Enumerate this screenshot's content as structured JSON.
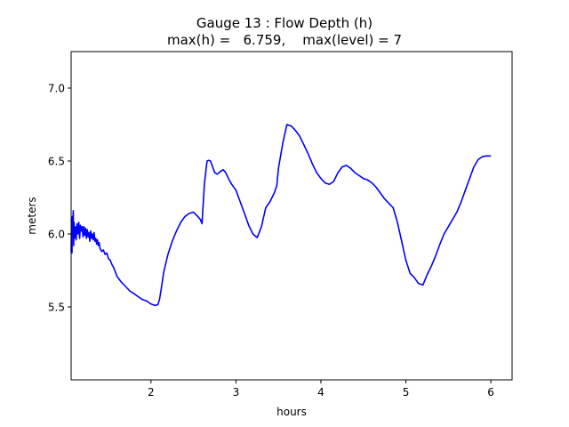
{
  "chart_data": {
    "type": "line",
    "title": "Gauge 13 : Flow Depth (h)",
    "subtitle": "max(h) =   6.759,    max(level) = 7",
    "xlabel": "hours",
    "ylabel": "meters",
    "xlim": [
      1.06,
      6.25
    ],
    "ylim": [
      5.0,
      7.25
    ],
    "xticks": [
      2,
      3,
      4,
      5,
      6
    ],
    "xtick_labels": [
      "2",
      "3",
      "4",
      "5",
      "6"
    ],
    "yticks": [
      5.5,
      6.0,
      6.5,
      7.0
    ],
    "ytick_labels": [
      "5.5",
      "6.0",
      "6.5",
      "7.0"
    ],
    "grid": false,
    "line_color": "#0000ff",
    "series": [
      {
        "x": [
          1.06,
          1.065,
          1.07,
          1.075,
          1.08,
          1.085,
          1.09,
          1.095,
          1.1,
          1.11,
          1.12,
          1.13,
          1.14,
          1.15,
          1.16,
          1.17,
          1.18,
          1.19,
          1.2,
          1.21,
          1.22,
          1.23,
          1.24,
          1.25,
          1.26,
          1.27,
          1.28,
          1.29,
          1.3,
          1.31,
          1.32,
          1.33,
          1.34,
          1.35,
          1.36,
          1.37,
          1.38,
          1.39,
          1.4,
          1.42,
          1.44,
          1.46,
          1.48,
          1.5,
          1.52,
          1.54,
          1.56,
          1.58,
          1.6,
          1.65,
          1.7,
          1.75,
          1.8,
          1.85,
          1.9,
          1.95,
          2.0,
          2.05,
          2.08,
          2.1,
          2.12,
          2.15,
          2.2,
          2.25,
          2.3,
          2.35,
          2.4,
          2.45,
          2.5,
          2.55,
          2.58,
          2.6,
          2.63,
          2.66,
          2.68,
          2.7,
          2.72,
          2.75,
          2.78,
          2.82,
          2.85,
          2.88,
          2.92,
          2.95,
          3.0,
          3.05,
          3.1,
          3.15,
          3.2,
          3.25,
          3.3,
          3.35,
          3.4,
          3.45,
          3.48,
          3.5,
          3.55,
          3.6,
          3.65,
          3.7,
          3.75,
          3.8,
          3.85,
          3.9,
          3.95,
          4.0,
          4.05,
          4.1,
          4.15,
          4.2,
          4.25,
          4.3,
          4.35,
          4.4,
          4.45,
          4.5,
          4.55,
          4.6,
          4.65,
          4.7,
          4.75,
          4.8,
          4.85,
          4.9,
          4.95,
          5.0,
          5.05,
          5.1,
          5.15,
          5.2,
          5.25,
          5.3,
          5.35,
          5.4,
          5.45,
          5.5,
          5.55,
          5.6,
          5.65,
          5.7,
          5.75,
          5.8,
          5.85,
          5.9,
          5.95,
          6.0
        ],
        "y": [
          5.88,
          6.1,
          5.87,
          6.12,
          6.05,
          6.16,
          5.92,
          6.08,
          5.97,
          6.05,
          5.96,
          6.07,
          6.0,
          6.08,
          5.97,
          6.06,
          6.02,
          6.05,
          5.98,
          6.05,
          5.99,
          6.04,
          5.97,
          6.03,
          5.98,
          6.01,
          5.95,
          6.02,
          5.97,
          6.0,
          5.96,
          6.01,
          5.95,
          5.97,
          5.93,
          5.96,
          5.92,
          5.94,
          5.9,
          5.88,
          5.89,
          5.86,
          5.87,
          5.83,
          5.82,
          5.79,
          5.77,
          5.74,
          5.71,
          5.67,
          5.64,
          5.61,
          5.59,
          5.57,
          5.55,
          5.54,
          5.52,
          5.51,
          5.515,
          5.55,
          5.62,
          5.74,
          5.86,
          5.95,
          6.02,
          6.08,
          6.12,
          6.14,
          6.15,
          6.12,
          6.1,
          6.07,
          6.35,
          6.5,
          6.505,
          6.5,
          6.47,
          6.42,
          6.41,
          6.43,
          6.44,
          6.42,
          6.37,
          6.34,
          6.3,
          6.22,
          6.14,
          6.06,
          6.0,
          5.975,
          6.05,
          6.18,
          6.22,
          6.28,
          6.33,
          6.45,
          6.62,
          6.75,
          6.74,
          6.71,
          6.67,
          6.61,
          6.55,
          6.48,
          6.42,
          6.38,
          6.35,
          6.34,
          6.36,
          6.42,
          6.46,
          6.47,
          6.45,
          6.42,
          6.4,
          6.38,
          6.37,
          6.35,
          6.32,
          6.28,
          6.24,
          6.21,
          6.18,
          6.08,
          5.95,
          5.82,
          5.73,
          5.7,
          5.66,
          5.65,
          5.72,
          5.78,
          5.85,
          5.93,
          6.0,
          6.05,
          6.1,
          6.15,
          6.22,
          6.3,
          6.38,
          6.46,
          6.51,
          6.53,
          6.535,
          6.535
        ]
      }
    ]
  }
}
